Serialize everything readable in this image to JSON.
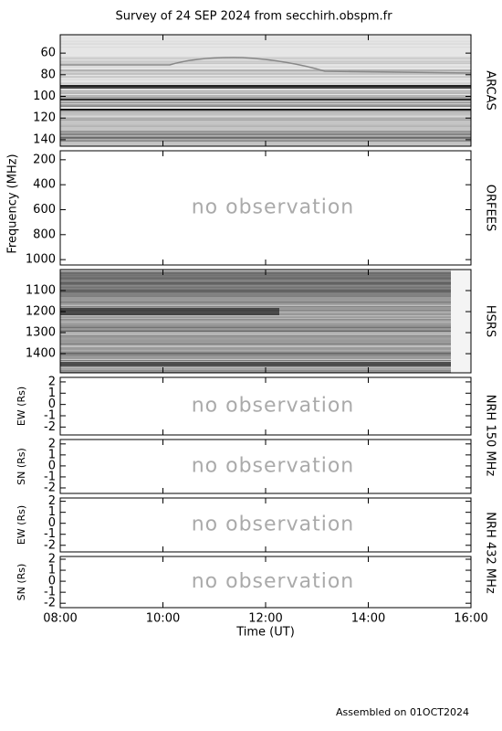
{
  "chart_data": {
    "type": "spectrogram_survey",
    "title": "Survey of 24 SEP 2024 from secchirh.obspm.fr",
    "x_label": "Time (UT)",
    "xlim": [
      8,
      16
    ],
    "xticks": [
      {
        "value": 8,
        "label": "08:00"
      },
      {
        "value": 10,
        "label": "10:00"
      },
      {
        "value": 12,
        "label": "12:00"
      },
      {
        "value": 14,
        "label": "14:00"
      },
      {
        "value": 16,
        "label": "16:00"
      }
    ],
    "footer": "Assembled on 01OCT2024",
    "panels": [
      {
        "type": "spectrogram",
        "right_label": "ARCAS",
        "y_label": "Frequency (MHz)",
        "y_inverted": true,
        "ylim": [
          43,
          146
        ],
        "yticks": [
          60,
          80,
          100,
          120,
          140
        ],
        "style": "light"
      },
      {
        "type": "empty",
        "right_label": "ORFEES",
        "y_inverted": true,
        "ylim": [
          128,
          1043
        ],
        "yticks": [
          200,
          400,
          600,
          800,
          1000
        ],
        "annotation": "no observation"
      },
      {
        "type": "spectrogram",
        "right_label": "HSRS",
        "y_inverted": true,
        "ylim": [
          1000,
          1491
        ],
        "yticks": [
          1100,
          1200,
          1300,
          1400
        ],
        "style": "dark"
      },
      {
        "type": "empty",
        "right_label": "NRH 150 MHz",
        "y_label": "EW (Rs)",
        "ylim": [
          -2.7,
          2.4
        ],
        "yticks": [
          -2,
          -1,
          0,
          1,
          2
        ],
        "annotation": "no observation"
      },
      {
        "type": "empty",
        "y_label": "SN (Rs)",
        "ylim": [
          -2.5,
          2.4
        ],
        "yticks": [
          -2,
          -1,
          0,
          1,
          2
        ],
        "annotation": "no observation"
      },
      {
        "type": "empty",
        "right_label": "NRH 432 MHz",
        "y_label": "EW (Rs)",
        "ylim": [
          -2.6,
          2.3
        ],
        "yticks": [
          -2,
          -1,
          0,
          1,
          2
        ],
        "annotation": "no observation"
      },
      {
        "type": "empty",
        "y_label": "SN (Rs)",
        "ylim": [
          -2.4,
          2.25
        ],
        "yticks": [
          -2,
          -1,
          0,
          1,
          2
        ],
        "annotation": "no observation"
      }
    ]
  }
}
